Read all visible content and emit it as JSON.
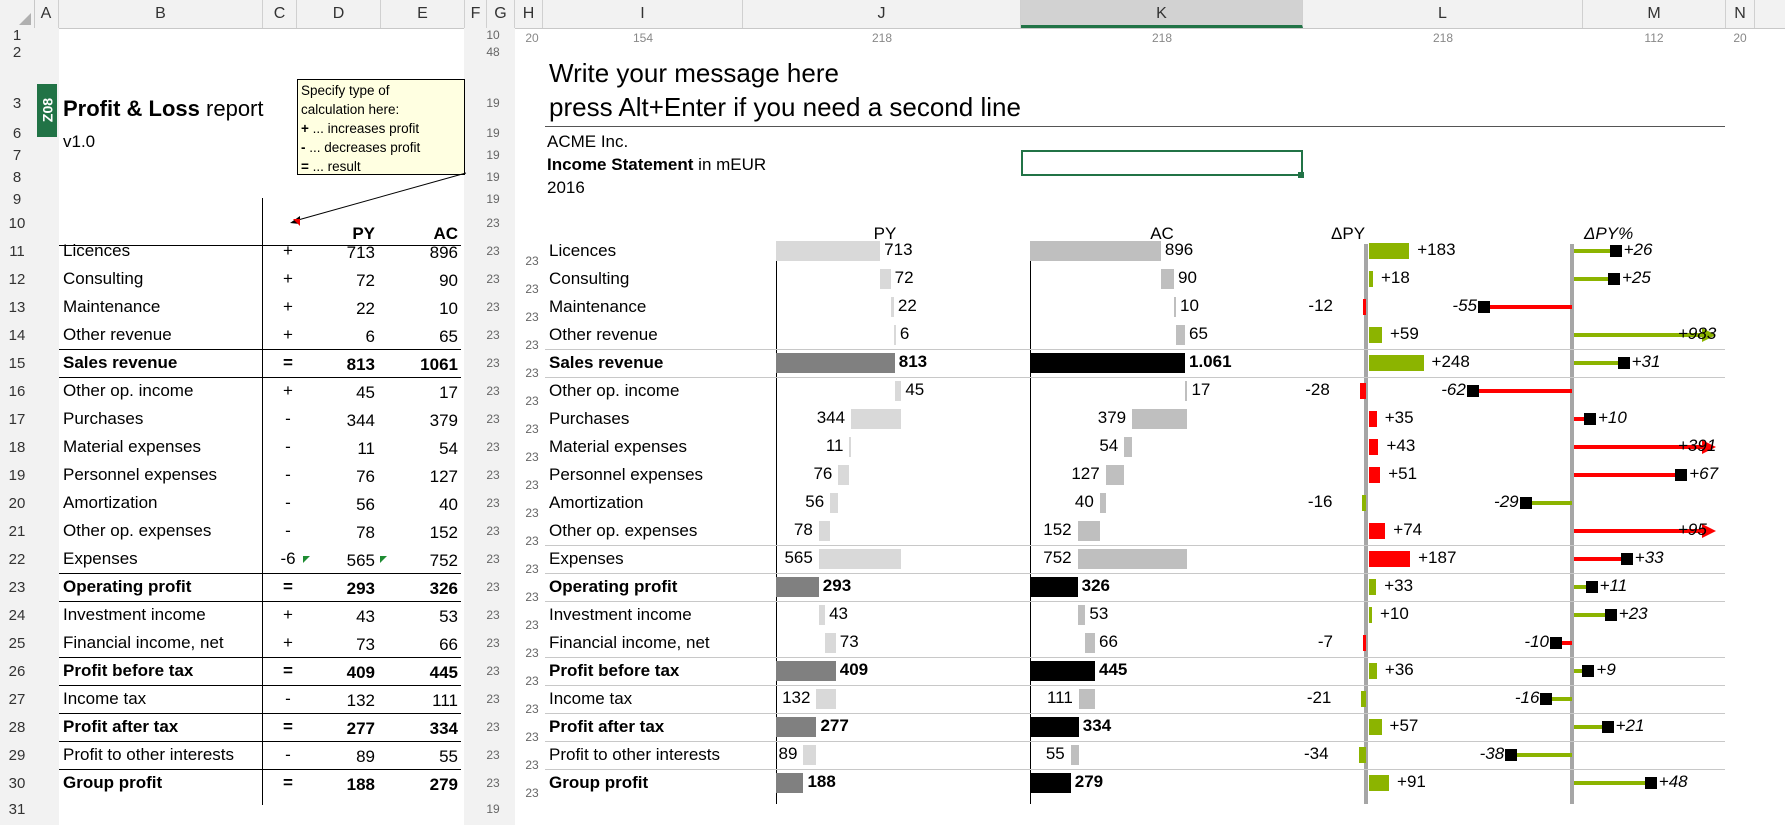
{
  "columns": [
    {
      "id": "col-A",
      "label": "A"
    },
    {
      "id": "col-B",
      "label": "B"
    },
    {
      "id": "col-C",
      "label": "C"
    },
    {
      "id": "col-D",
      "label": "D"
    },
    {
      "id": "col-E",
      "label": "E"
    },
    {
      "id": "col-F",
      "label": "F"
    },
    {
      "id": "col-G",
      "label": "G"
    },
    {
      "id": "col-H",
      "label": "H"
    },
    {
      "id": "col-I",
      "label": "I"
    },
    {
      "id": "col-J",
      "label": "J"
    },
    {
      "id": "col-K",
      "label": "K"
    },
    {
      "id": "col-L",
      "label": "L"
    },
    {
      "id": "col-M",
      "label": "M"
    },
    {
      "id": "col-N",
      "label": "N"
    }
  ],
  "column_widths": [
    "20",
    "154",
    "218",
    "218",
    "218",
    "112",
    "20"
  ],
  "row_numbers": [
    "1",
    "2",
    "3",
    "6",
    "7",
    "8",
    "9",
    "10",
    "11",
    "12",
    "13",
    "14",
    "15",
    "16",
    "17",
    "18",
    "19",
    "20",
    "21",
    "22",
    "23",
    "24",
    "25",
    "26",
    "27",
    "28",
    "29",
    "30",
    "31"
  ],
  "row_heights": [
    "10",
    "48",
    "19",
    "19",
    "19",
    "19",
    "19",
    "23",
    "23",
    "23",
    "23",
    "23",
    "23",
    "23",
    "23",
    "23",
    "23",
    "23",
    "23",
    "23",
    "23",
    "23",
    "23",
    "23",
    "23",
    "23",
    "23",
    "23",
    "19"
  ],
  "left": {
    "badge": "Z08",
    "title_bold": "Profit & Loss",
    "title_rest": " report",
    "version": "v1.0",
    "col_py": "PY",
    "col_ac": "AC"
  },
  "note": {
    "line1": "Specify type of",
    "line2": "calculation here:",
    "line3_sym": "+",
    "line3": " ... increases profit",
    "line4_sym": "-",
    "line4": "  ... decreases profit",
    "line5_sym": "=",
    "line5": " ... result"
  },
  "right": {
    "message1": "Write your message here",
    "message2": "press Alt+Enter if you need a second line",
    "company": "ACME Inc.",
    "statement_bold": "Income Statement",
    "statement_rest": " in mEUR",
    "year": "2016",
    "hdr_py": "PY",
    "hdr_ac": "AC",
    "hdr_dpy": "ΔPY",
    "hdr_dpyp": "ΔPY%"
  },
  "colors": {
    "positive": "#8cb400",
    "negative": "#ff0000",
    "py_bar": "#c0c0c0",
    "ac_bar": "#a0a0a0",
    "result_py": "#808080",
    "result_ac": "#000000"
  },
  "rows": [
    {
      "label": "Licences",
      "op": "+",
      "py": "713",
      "ac": "896",
      "py_r": "713",
      "ac_r": "896",
      "d": "+183",
      "dp": "+26",
      "dv": 183,
      "dpv": 26
    },
    {
      "label": "Consulting",
      "op": "+",
      "py": "72",
      "ac": "90",
      "py_r": "72",
      "ac_r": "90",
      "d": "+18",
      "dp": "+25",
      "dv": 18,
      "dpv": 25
    },
    {
      "label": "Maintenance",
      "op": "+",
      "py": "22",
      "ac": "10",
      "py_r": "22",
      "ac_r": "10",
      "d": "-12",
      "dp": "-55",
      "dv": -12,
      "dpv": -55
    },
    {
      "label": "Other revenue",
      "op": "+",
      "py": "6",
      "ac": "65",
      "py_r": "6",
      "ac_r": "65",
      "d": "+59",
      "dp": "+983",
      "dv": 59,
      "dpv": 983
    },
    {
      "label": "Sales revenue",
      "op": "=",
      "py": "813",
      "ac": "1061",
      "py_r": "813",
      "ac_r": "1.061",
      "d": "+248",
      "dp": "+31",
      "dv": 248,
      "dpv": 31,
      "bold": true
    },
    {
      "label": "Other op. income",
      "op": "+",
      "py": "45",
      "ac": "17",
      "py_r": "45",
      "ac_r": "17",
      "d": "-28",
      "dp": "-62",
      "dv": -28,
      "dpv": -62
    },
    {
      "label": "Purchases",
      "op": "-",
      "py": "344",
      "ac": "379",
      "py_r": "344",
      "ac_r": "379",
      "d": "+35",
      "dp": "+10",
      "dv": 35,
      "dpv": 10
    },
    {
      "label": "Material expenses",
      "op": "-",
      "py": "11",
      "ac": "54",
      "py_r": "11",
      "ac_r": "54",
      "d": "+43",
      "dp": "+391",
      "dv": 43,
      "dpv": 391
    },
    {
      "label": "Personnel expenses",
      "op": "-",
      "py": "76",
      "ac": "127",
      "py_r": "76",
      "ac_r": "127",
      "d": "+51",
      "dp": "+67",
      "dv": 51,
      "dpv": 67
    },
    {
      "label": "Amortization",
      "op": "-",
      "py": "56",
      "ac": "40",
      "py_r": "56",
      "ac_r": "40",
      "d": "-16",
      "dp": "-29",
      "dv": -16,
      "dpv": -29
    },
    {
      "label": "Other op. expenses",
      "op": "-",
      "py": "78",
      "ac": "152",
      "py_r": "78",
      "ac_r": "152",
      "d": "+74",
      "dp": "+95",
      "dv": 74,
      "dpv": 95
    },
    {
      "label": "Expenses",
      "op": "-6",
      "py": "565",
      "ac": "752",
      "py_r": "565",
      "ac_r": "752",
      "d": "+187",
      "dp": "+33",
      "dv": 187,
      "dpv": 33
    },
    {
      "label": "Operating profit",
      "op": "=",
      "py": "293",
      "ac": "326",
      "py_r": "293",
      "ac_r": "326",
      "d": "+33",
      "dp": "+11",
      "dv": 33,
      "dpv": 11,
      "bold": true
    },
    {
      "label": "Investment income",
      "op": "+",
      "py": "43",
      "ac": "53",
      "py_r": "43",
      "ac_r": "53",
      "d": "+10",
      "dp": "+23",
      "dv": 10,
      "dpv": 23
    },
    {
      "label": "Financial income, net",
      "op": "+",
      "py": "73",
      "ac": "66",
      "py_r": "73",
      "ac_r": "66",
      "d": "-7",
      "dp": "-10",
      "dv": -7,
      "dpv": -10
    },
    {
      "label": "Profit before tax",
      "op": "=",
      "py": "409",
      "ac": "445",
      "py_r": "409",
      "ac_r": "445",
      "d": "+36",
      "dp": "+9",
      "dv": 36,
      "dpv": 9,
      "bold": true
    },
    {
      "label": "Income tax",
      "op": "-",
      "py": "132",
      "ac": "111",
      "py_r": "132",
      "ac_r": "111",
      "d": "-21",
      "dp": "-16",
      "dv": -21,
      "dpv": -16
    },
    {
      "label": "Profit after tax",
      "op": "=",
      "py": "277",
      "ac": "334",
      "py_r": "277",
      "ac_r": "334",
      "d": "+57",
      "dp": "+21",
      "dv": 57,
      "dpv": 21,
      "bold": true
    },
    {
      "label": "Profit to other interests",
      "op": "-",
      "py": "89",
      "ac": "55",
      "py_r": "89",
      "ac_r": "55",
      "d": "-34",
      "dp": "-38",
      "dv": -34,
      "dpv": -38
    },
    {
      "label": "Group profit",
      "op": "=",
      "py": "188",
      "ac": "279",
      "py_r": "188",
      "ac_r": "279",
      "d": "+91",
      "dp": "+48",
      "dv": 91,
      "dpv": 48,
      "bold": true
    }
  ]
}
